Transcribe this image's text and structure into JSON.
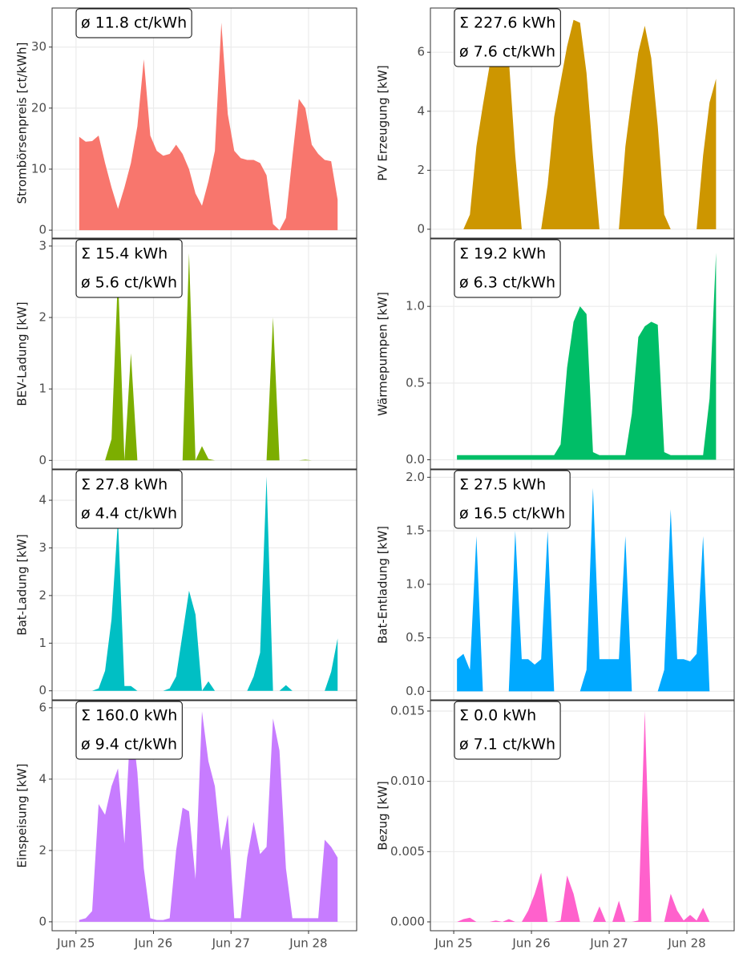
{
  "chart_data": [
    {
      "type": "area",
      "y_label": "Strombörsenpreis [ct/kWh]",
      "annotations": [
        "ø 11.8 ct/kWh"
      ],
      "color": "#F8766D",
      "x": [
        1,
        3,
        5,
        7,
        9,
        11,
        13,
        15,
        17,
        19,
        21,
        23,
        25,
        27,
        29,
        31,
        33,
        35,
        37,
        39,
        41,
        43,
        45,
        47,
        49,
        51,
        53,
        55,
        57,
        59,
        61,
        63,
        65,
        67,
        69,
        71,
        73,
        75,
        77,
        79,
        81
      ],
      "values": [
        15.3,
        14.5,
        14.6,
        15.5,
        11,
        7,
        3.5,
        7,
        11,
        17,
        28,
        15.5,
        13,
        12.2,
        12.5,
        14,
        12.5,
        10,
        6,
        4,
        8,
        13,
        34,
        19,
        13,
        11.8,
        11.5,
        11.5,
        11,
        9,
        1,
        0,
        2,
        12,
        21.5,
        20,
        14,
        12.5,
        11.5,
        11.3,
        5
      ],
      "xlim": [
        -7.4,
        86.9
      ],
      "ylim": [
        -1.3,
        36.4
      ],
      "yticks": [
        0,
        10,
        20,
        30
      ],
      "grid": true
    },
    {
      "type": "area",
      "y_label": "PV Erzeugung [kW]",
      "annotations": [
        "Σ 227.6 kWh",
        "ø 7.6 ct/kWh"
      ],
      "color": "#CD9600",
      "x": [
        1,
        3,
        5,
        7,
        9,
        11,
        13,
        15,
        17,
        19,
        21,
        23,
        25,
        27,
        29,
        31,
        33,
        35,
        37,
        39,
        41,
        43,
        45,
        47,
        49,
        51,
        53,
        55,
        57,
        59,
        61,
        63,
        65,
        67,
        69,
        71,
        73,
        75,
        77,
        79,
        81
      ],
      "values": [
        0,
        0,
        0.5,
        2.8,
        4.2,
        5.5,
        6.3,
        6.5,
        5.8,
        2.5,
        0,
        0,
        0,
        0,
        1.5,
        3.8,
        5,
        6.2,
        7.1,
        7,
        5.3,
        2.5,
        0,
        0,
        0,
        0,
        2.8,
        4.5,
        6,
        6.9,
        5.8,
        3.5,
        0.5,
        0,
        0,
        0,
        0,
        0,
        2.5,
        4.3,
        5.1
      ],
      "xlim": [
        -7.2,
        86.6
      ],
      "ylim": [
        -0.3,
        7.5
      ],
      "yticks": [
        0,
        2,
        4,
        6
      ],
      "grid": true
    },
    {
      "type": "area",
      "y_label": "BEV-Ladung [kW]",
      "annotations": [
        "Σ 15.4 kWh",
        "ø 5.6 ct/kWh"
      ],
      "color": "#7CAE00",
      "x": [
        1,
        3,
        5,
        7,
        9,
        11,
        13,
        15,
        17,
        19,
        21,
        23,
        25,
        27,
        29,
        31,
        33,
        35,
        37,
        39,
        41,
        43,
        45,
        47,
        49,
        51,
        53,
        55,
        57,
        59,
        61,
        63,
        65,
        67,
        69,
        71,
        73,
        75,
        77,
        79,
        81
      ],
      "values": [
        0,
        0,
        0,
        0,
        0,
        0.3,
        2.6,
        0,
        1.5,
        0,
        0,
        0,
        0,
        0,
        0,
        0,
        0,
        2.9,
        0,
        0.2,
        0.02,
        0,
        0,
        0,
        0,
        0,
        0,
        0,
        0,
        0,
        2.0,
        0,
        0,
        0,
        0,
        0.01,
        0,
        0,
        0,
        0,
        0
      ],
      "xlim": [
        -7.4,
        86.9
      ],
      "ylim": [
        -0.12,
        3.1
      ],
      "yticks": [
        0,
        1,
        2,
        3
      ],
      "grid": true
    },
    {
      "type": "area",
      "y_label": "Wärmepumpen [kW]",
      "annotations": [
        "Σ 19.2 kWh",
        "ø 6.3 ct/kWh"
      ],
      "color": "#00BE67",
      "x": [
        1,
        3,
        5,
        7,
        9,
        11,
        13,
        15,
        17,
        19,
        21,
        23,
        25,
        27,
        29,
        31,
        33,
        35,
        37,
        39,
        41,
        43,
        45,
        47,
        49,
        51,
        53,
        55,
        57,
        59,
        61,
        63,
        65,
        67,
        69,
        71,
        73,
        75,
        77,
        79,
        81
      ],
      "values": [
        0.03,
        0.03,
        0.03,
        0.03,
        0.03,
        0.03,
        0.03,
        0.03,
        0.03,
        0.03,
        0.03,
        0.03,
        0.03,
        0.03,
        0.03,
        0.03,
        0.1,
        0.6,
        0.9,
        1.0,
        0.95,
        0.05,
        0.03,
        0.03,
        0.03,
        0.03,
        0.03,
        0.3,
        0.8,
        0.87,
        0.9,
        0.88,
        0.05,
        0.03,
        0.03,
        0.03,
        0.03,
        0.03,
        0.03,
        0.4,
        1.35
      ],
      "xlim": [
        -7.2,
        86.6
      ],
      "ylim": [
        -0.06,
        1.44
      ],
      "yticks": [
        {
          "value": 0,
          "label": "0.0"
        },
        0.5,
        {
          "value": 1,
          "label": "1.0"
        }
      ],
      "grid": true
    },
    {
      "type": "area",
      "y_label": "Bat-Ladung [kW]",
      "annotations": [
        "Σ 27.8 kWh",
        "ø 4.4 ct/kWh"
      ],
      "color": "#00BFC4",
      "x": [
        1,
        3,
        5,
        7,
        9,
        11,
        13,
        15,
        17,
        19,
        21,
        23,
        25,
        27,
        29,
        31,
        33,
        35,
        37,
        39,
        41,
        43,
        45,
        47,
        49,
        51,
        53,
        55,
        57,
        59,
        61,
        63,
        65,
        67,
        69,
        71,
        73,
        75,
        77,
        79,
        81
      ],
      "values": [
        0,
        0,
        0,
        0.05,
        0.42,
        1.5,
        3.6,
        0.1,
        0.1,
        0,
        0,
        0,
        0,
        0,
        0.05,
        0.3,
        1.2,
        2.1,
        1.6,
        0,
        0.2,
        0,
        0,
        0,
        0,
        0,
        0,
        0.3,
        0.8,
        4.5,
        0,
        0,
        0.12,
        0,
        0,
        0,
        0,
        0,
        0,
        0.4,
        1.1
      ],
      "xlim": [
        -7.4,
        86.9
      ],
      "ylim": [
        -0.19,
        4.64
      ],
      "yticks": [
        0,
        1,
        2,
        3,
        4
      ],
      "grid": true
    },
    {
      "type": "area",
      "y_label": "Bat-Entladung [kW]",
      "annotations": [
        "Σ 27.5 kWh",
        "ø 16.5 ct/kWh"
      ],
      "color": "#00A9FF",
      "x": [
        1,
        3,
        5,
        7,
        9,
        11,
        13,
        15,
        17,
        19,
        21,
        23,
        25,
        27,
        29,
        31,
        33,
        35,
        37,
        39,
        41,
        43,
        45,
        47,
        49,
        51,
        53,
        55,
        57,
        59,
        61,
        63,
        65,
        67,
        69,
        71,
        73,
        75,
        77,
        79,
        81
      ],
      "values": [
        0.3,
        0.35,
        0.2,
        1.45,
        0,
        0,
        0,
        0,
        0,
        1.5,
        0.3,
        0.3,
        0.25,
        0.3,
        1.5,
        0,
        0,
        0,
        0,
        0,
        0.2,
        1.9,
        0.3,
        0.3,
        0.3,
        0.3,
        1.45,
        0,
        0,
        0,
        0,
        0,
        0.2,
        1.7,
        0.3,
        0.3,
        0.28,
        0.35,
        1.45,
        0,
        0
      ],
      "xlim": [
        -7.2,
        86.6
      ],
      "ylim": [
        -0.08,
        2.07
      ],
      "yticks": [
        {
          "value": 0,
          "label": "0.0"
        },
        0.5,
        {
          "value": 1,
          "label": "1.0"
        },
        1.5,
        {
          "value": 2,
          "label": "2.0"
        }
      ],
      "grid": true
    },
    {
      "type": "area",
      "y_label": "Einspeisung [kW]",
      "annotations": [
        "Σ 160.0 kWh",
        "ø 9.4 ct/kWh"
      ],
      "color": "#C77CFF",
      "x": [
        1,
        3,
        5,
        7,
        9,
        11,
        13,
        15,
        17,
        19,
        21,
        23,
        25,
        27,
        29,
        31,
        33,
        35,
        37,
        39,
        41,
        43,
        45,
        47,
        49,
        51,
        53,
        55,
        57,
        59,
        61,
        63,
        65,
        67,
        69,
        71,
        73,
        75,
        77,
        79,
        81
      ],
      "values": [
        0.05,
        0.1,
        0.3,
        3.3,
        3.0,
        3.8,
        4.3,
        2.2,
        5.8,
        4.2,
        1.5,
        0.1,
        0.05,
        0.05,
        0.1,
        2.0,
        3.2,
        3.1,
        1.2,
        5.9,
        4.5,
        3.8,
        2.0,
        3.0,
        0.1,
        0.1,
        1.8,
        2.8,
        1.9,
        2.1,
        5.7,
        4.8,
        1.5,
        0.1,
        0.1,
        0.1,
        0.1,
        0.1,
        2.3,
        2.1,
        1.8
      ],
      "xlim": [
        -7.4,
        86.9
      ],
      "ylim": [
        -0.25,
        6.2
      ],
      "yticks": [
        0,
        2,
        4,
        6
      ],
      "xticks": [
        {
          "value": 0,
          "label": "Jun 25"
        },
        {
          "value": 24,
          "label": "Jun 26"
        },
        {
          "value": 48,
          "label": "Jun 27"
        },
        {
          "value": 72,
          "label": "Jun 28"
        }
      ],
      "grid": true
    },
    {
      "type": "area",
      "y_label": "Bezug [kW]",
      "annotations": [
        "Σ 0.0 kWh",
        "ø 7.1 ct/kWh"
      ],
      "color": "#FF61CC",
      "x": [
        1,
        3,
        5,
        7,
        9,
        11,
        13,
        15,
        17,
        19,
        21,
        23,
        25,
        27,
        29,
        31,
        33,
        35,
        37,
        39,
        41,
        43,
        45,
        47,
        49,
        51,
        53,
        55,
        57,
        59,
        61,
        63,
        65,
        67,
        69,
        71,
        73,
        75,
        77,
        79,
        81
      ],
      "values": [
        0,
        0.0002,
        0.0003,
        0,
        0,
        0,
        0.0001,
        0,
        0.0002,
        0,
        0,
        0.0008,
        0.002,
        0.0035,
        0,
        0,
        0.0001,
        0.0033,
        0.002,
        0,
        0,
        0,
        0.0011,
        0,
        0,
        0.0015,
        0,
        0,
        0.0001,
        0.015,
        0,
        0,
        0,
        0.002,
        0.0008,
        0.0001,
        0.0005,
        0.0001,
        0.001,
        0,
        0
      ],
      "xlim": [
        -7.2,
        86.6
      ],
      "ylim": [
        -0.00063,
        0.01574
      ],
      "yticks": [
        {
          "value": 0,
          "label": "0.000"
        },
        0.005,
        {
          "value": 0.01,
          "label": "0.010"
        },
        0.015
      ],
      "xticks": [
        {
          "value": 0,
          "label": "Jun 25"
        },
        {
          "value": 24,
          "label": "Jun 26"
        },
        {
          "value": 48,
          "label": "Jun 27"
        },
        {
          "value": 72,
          "label": "Jun 28"
        }
      ],
      "grid": true
    }
  ]
}
